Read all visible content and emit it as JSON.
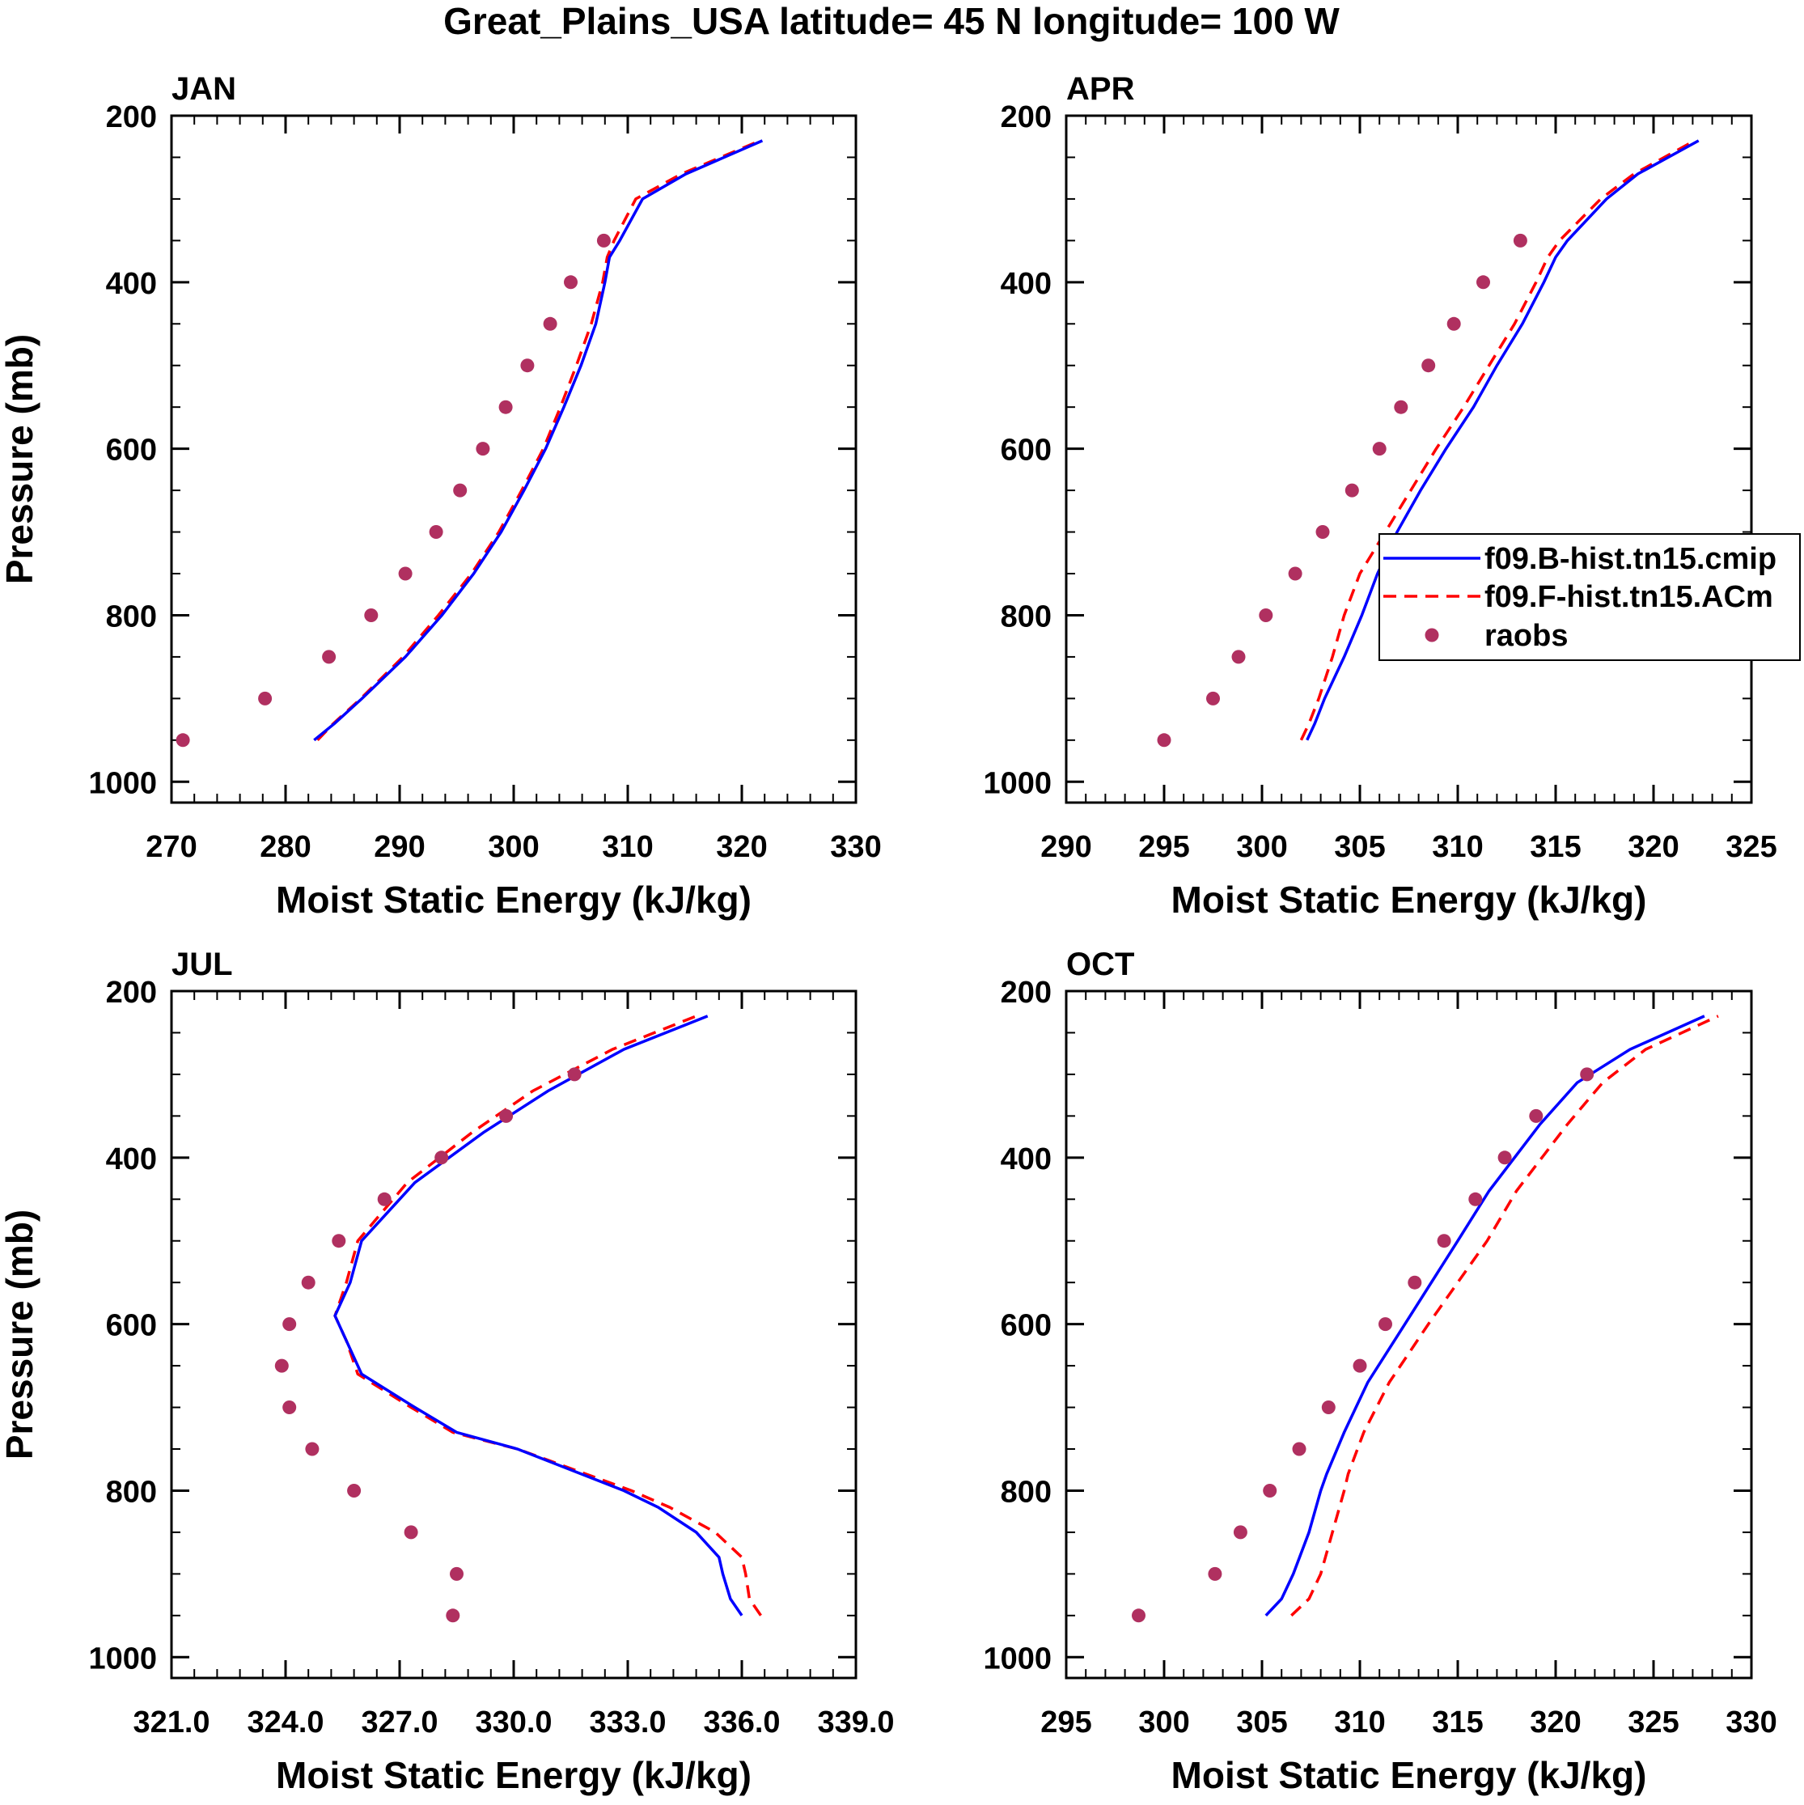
{
  "title": "Great_Plains_USA  latitude= 45 N longitude= 100 W",
  "colors": {
    "model_b": "#0000ff",
    "model_f": "#ff0000",
    "raobs": "#b03060",
    "axis": "#000000"
  },
  "legend": {
    "entries": [
      {
        "label": "f09.B-hist.tn15.cmip",
        "style": "solid",
        "color": "#0000ff"
      },
      {
        "label": "f09.F-hist.tn15.ACm",
        "style": "dashed",
        "color": "#ff0000"
      },
      {
        "label": "raobs",
        "style": "marker",
        "color": "#b03060"
      }
    ]
  },
  "chart_data": [
    {
      "type": "line",
      "panel": "JAN",
      "title": "JAN",
      "xlabel": "Moist Static Energy (kJ/kg)",
      "ylabel": "Pressure (mb)",
      "xlim": [
        270,
        330
      ],
      "xticks": [
        270,
        280,
        290,
        300,
        310,
        320,
        330
      ],
      "xtick_labels": [
        "270",
        "280",
        "290",
        "300",
        "310",
        "320",
        "330"
      ],
      "ylim": [
        1025,
        200
      ],
      "yticks": [
        200,
        400,
        600,
        800,
        1000
      ],
      "yticks_minor": [
        250,
        300,
        350,
        450,
        500,
        550,
        650,
        700,
        750,
        850,
        900,
        950
      ],
      "series": [
        {
          "name": "f09.B-hist.tn15.cmip",
          "pressure": [
            950,
            930,
            900,
            850,
            800,
            750,
            700,
            650,
            600,
            550,
            500,
            450,
            400,
            370,
            350,
            300,
            270,
            230
          ],
          "values": [
            282.5,
            284.3,
            286.7,
            290.5,
            293.7,
            296.5,
            298.9,
            300.9,
            302.8,
            304.4,
            305.9,
            307.2,
            308.0,
            308.4,
            309.3,
            311.3,
            315.1,
            321.8
          ]
        },
        {
          "name": "f09.F-hist.tn15.ACm",
          "pressure": [
            950,
            930,
            900,
            850,
            800,
            750,
            700,
            650,
            600,
            550,
            500,
            450,
            400,
            370,
            350,
            300,
            270,
            230
          ],
          "values": [
            282.8,
            284.2,
            286.6,
            290.3,
            293.4,
            296.3,
            298.7,
            300.7,
            302.6,
            304.1,
            305.5,
            306.8,
            307.8,
            308.2,
            308.8,
            310.7,
            314.7,
            321.6
          ]
        },
        {
          "name": "raobs",
          "pressure": [
            950,
            900,
            850,
            800,
            750,
            700,
            650,
            600,
            550,
            500,
            450,
            400,
            350
          ],
          "values": [
            271.0,
            278.2,
            283.8,
            287.5,
            290.5,
            293.2,
            295.3,
            297.3,
            299.3,
            301.2,
            303.2,
            305.0,
            307.9
          ]
        }
      ]
    },
    {
      "type": "line",
      "panel": "APR",
      "title": "APR",
      "xlabel": "Moist Static Energy (kJ/kg)",
      "ylabel": "",
      "xlim": [
        290,
        325
      ],
      "xticks": [
        290,
        295,
        300,
        305,
        310,
        315,
        320,
        325
      ],
      "xtick_labels": [
        "290",
        "295",
        "300",
        "305",
        "310",
        "315",
        "320",
        "325"
      ],
      "ylim": [
        1025,
        200
      ],
      "yticks": [
        200,
        400,
        600,
        800,
        1000
      ],
      "yticks_minor": [
        250,
        300,
        350,
        450,
        500,
        550,
        650,
        700,
        750,
        850,
        900,
        950
      ],
      "series": [
        {
          "name": "f09.B-hist.tn15.cmip",
          "pressure": [
            950,
            930,
            900,
            850,
            800,
            750,
            700,
            650,
            600,
            550,
            500,
            450,
            400,
            370,
            350,
            300,
            270,
            230
          ],
          "values": [
            302.3,
            302.7,
            303.2,
            304.2,
            305.1,
            305.9,
            306.9,
            308.1,
            309.4,
            310.8,
            312.0,
            313.3,
            314.4,
            315.0,
            315.6,
            317.6,
            319.2,
            322.3
          ]
        },
        {
          "name": "f09.F-hist.tn15.ACm",
          "pressure": [
            950,
            930,
            900,
            850,
            800,
            750,
            700,
            650,
            600,
            550,
            500,
            450,
            400,
            370,
            350,
            300,
            270,
            230
          ],
          "values": [
            302.0,
            302.4,
            302.9,
            303.6,
            304.2,
            305.0,
            306.3,
            307.6,
            308.9,
            310.3,
            311.6,
            312.9,
            314.0,
            314.6,
            315.2,
            317.3,
            319.0,
            322.1
          ]
        },
        {
          "name": "raobs",
          "pressure": [
            950,
            900,
            850,
            800,
            750,
            700,
            650,
            600,
            550,
            500,
            450,
            400,
            350
          ],
          "values": [
            295.0,
            297.5,
            298.8,
            300.2,
            301.7,
            303.1,
            304.6,
            306.0,
            307.1,
            308.5,
            309.8,
            311.3,
            313.2
          ]
        }
      ]
    },
    {
      "type": "line",
      "panel": "JUL",
      "title": "JUL",
      "xlabel": "Moist Static Energy (kJ/kg)",
      "ylabel": "Pressure (mb)",
      "xlim": [
        321,
        339
      ],
      "xticks": [
        321,
        324,
        327,
        330,
        333,
        336,
        339
      ],
      "xtick_labels": [
        "321.0",
        "324.0",
        "327.0",
        "330.0",
        "333.0",
        "336.0",
        "339.0"
      ],
      "ylim": [
        1025,
        200
      ],
      "yticks": [
        200,
        400,
        600,
        800,
        1000
      ],
      "yticks_minor": [
        250,
        300,
        350,
        450,
        500,
        550,
        650,
        700,
        750,
        850,
        900,
        950
      ],
      "series": [
        {
          "name": "f09.B-hist.tn15.cmip",
          "pressure": [
            950,
            930,
            900,
            880,
            850,
            820,
            800,
            750,
            730,
            700,
            660,
            620,
            590,
            550,
            500,
            430,
            370,
            320,
            270,
            230
          ],
          "values": [
            336.0,
            335.7,
            335.5,
            335.4,
            334.8,
            333.8,
            332.9,
            330.1,
            328.5,
            327.4,
            326.0,
            325.6,
            325.3,
            325.7,
            326.0,
            327.4,
            329.2,
            330.9,
            332.9,
            335.1
          ]
        },
        {
          "name": "f09.F-hist.tn15.ACm",
          "pressure": [
            950,
            930,
            900,
            880,
            850,
            820,
            800,
            750,
            730,
            700,
            660,
            620,
            590,
            550,
            500,
            430,
            370,
            320,
            270,
            230
          ],
          "values": [
            336.5,
            336.2,
            336.1,
            336.0,
            335.3,
            334.1,
            333.1,
            330.1,
            328.4,
            327.3,
            325.9,
            325.6,
            325.3,
            325.6,
            325.9,
            327.2,
            328.9,
            330.5,
            332.6,
            334.8
          ]
        },
        {
          "name": "raobs",
          "pressure": [
            950,
            900,
            850,
            800,
            750,
            700,
            650,
            600,
            550,
            500,
            450,
            400,
            350,
            300
          ],
          "values": [
            328.4,
            328.5,
            327.3,
            325.8,
            324.7,
            324.1,
            323.9,
            324.1,
            324.6,
            325.4,
            326.6,
            328.1,
            329.8,
            331.6
          ]
        }
      ]
    },
    {
      "type": "line",
      "panel": "OCT",
      "title": "OCT",
      "xlabel": "Moist Static Energy (kJ/kg)",
      "ylabel": "",
      "xlim": [
        295,
        330
      ],
      "xticks": [
        295,
        300,
        305,
        310,
        315,
        320,
        325,
        330
      ],
      "xtick_labels": [
        "295",
        "300",
        "305",
        "310",
        "315",
        "320",
        "325",
        "330"
      ],
      "ylim": [
        1025,
        200
      ],
      "yticks": [
        200,
        400,
        600,
        800,
        1000
      ],
      "yticks_minor": [
        250,
        300,
        350,
        450,
        500,
        550,
        650,
        700,
        750,
        850,
        900,
        950
      ],
      "series": [
        {
          "name": "f09.B-hist.tn15.cmip",
          "pressure": [
            950,
            930,
            900,
            850,
            800,
            780,
            730,
            670,
            600,
            500,
            440,
            360,
            310,
            270,
            230
          ],
          "values": [
            305.2,
            306.0,
            306.6,
            307.4,
            308.0,
            308.3,
            309.2,
            310.4,
            312.3,
            315.0,
            316.6,
            319.2,
            321.1,
            323.8,
            327.6
          ]
        },
        {
          "name": "f09.F-hist.tn15.ACm",
          "pressure": [
            950,
            930,
            900,
            850,
            800,
            780,
            730,
            670,
            600,
            500,
            440,
            360,
            310,
            270,
            230
          ],
          "values": [
            306.5,
            307.4,
            308.0,
            308.6,
            309.2,
            309.4,
            310.2,
            311.5,
            313.5,
            316.5,
            318.0,
            320.6,
            322.4,
            324.6,
            328.3
          ]
        },
        {
          "name": "raobs",
          "pressure": [
            950,
            900,
            850,
            800,
            750,
            700,
            650,
            600,
            550,
            500,
            450,
            400,
            350,
            300
          ],
          "values": [
            298.7,
            302.6,
            303.9,
            305.4,
            306.9,
            308.4,
            310.0,
            311.3,
            312.8,
            314.3,
            315.9,
            317.4,
            319.0,
            321.6
          ]
        }
      ]
    }
  ]
}
